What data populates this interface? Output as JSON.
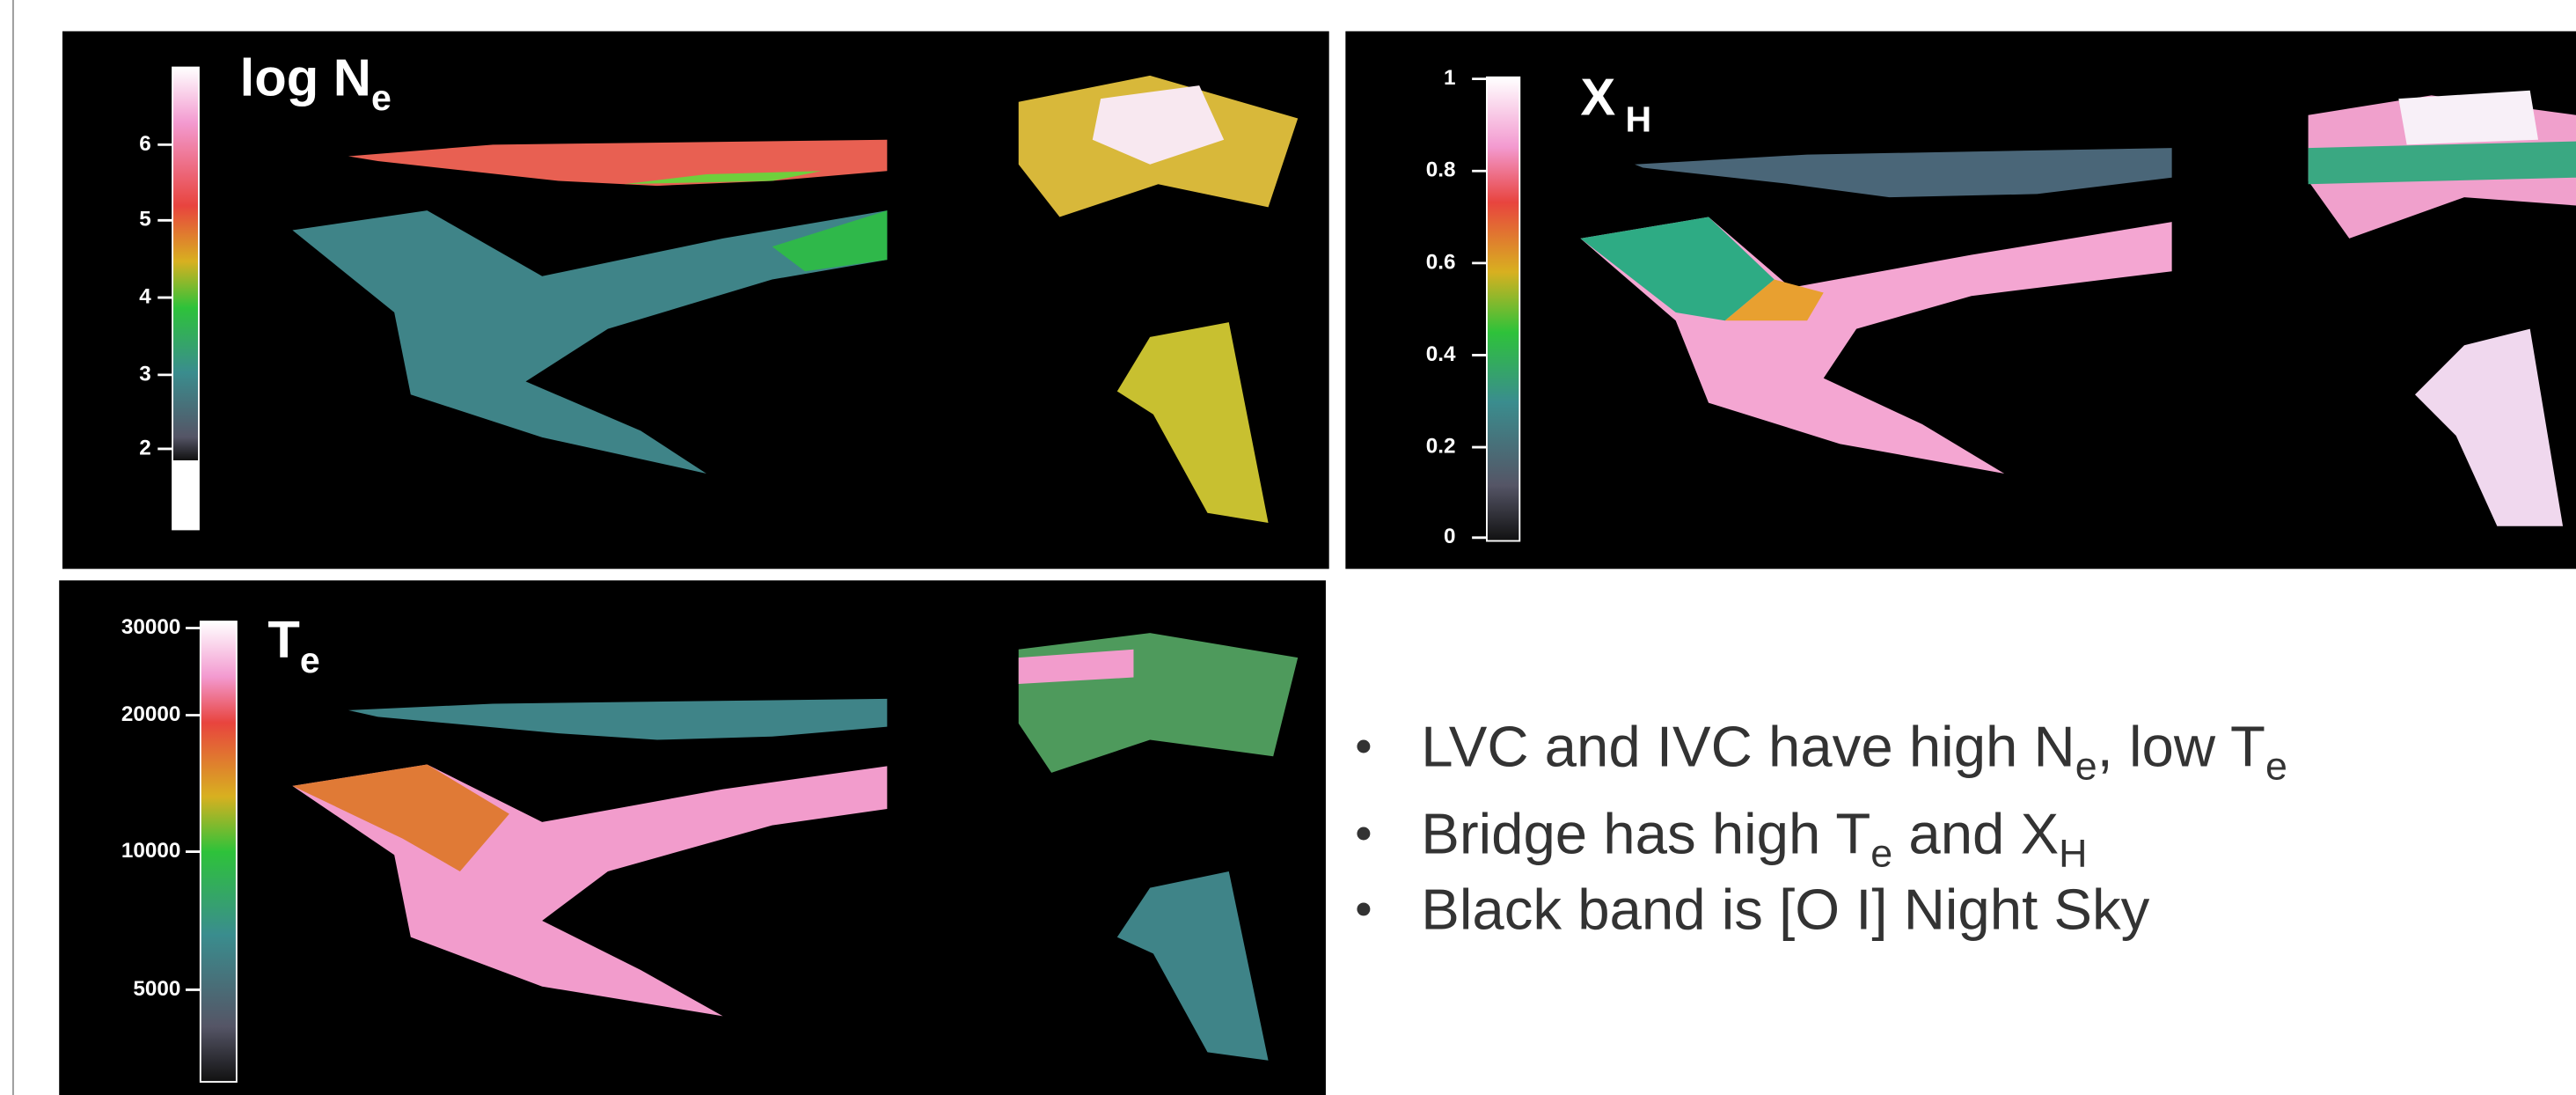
{
  "panels": [
    {
      "title": {
        "main": "log N",
        "sub": "e"
      },
      "colorbar_ticks": [
        "6",
        "5",
        "4",
        "3",
        "2"
      ]
    },
    {
      "title": {
        "main": "X",
        "sub": "H"
      },
      "colorbar_ticks": [
        "1",
        "0.8",
        "0.6",
        "0.4",
        "0.2",
        "0"
      ]
    },
    {
      "title": {
        "main": "T",
        "sub": "e"
      },
      "colorbar_ticks": [
        "30000",
        "20000",
        "10000",
        "5000"
      ]
    }
  ],
  "bullets": [
    {
      "parts": [
        "LVC and IVC have high N",
        "e",
        ", low T",
        "e"
      ]
    },
    {
      "parts": [
        "Bridge has high T",
        "e",
        " and X",
        "H"
      ]
    },
    {
      "parts": [
        "Black band is [O I] Night Sky"
      ]
    }
  ]
}
